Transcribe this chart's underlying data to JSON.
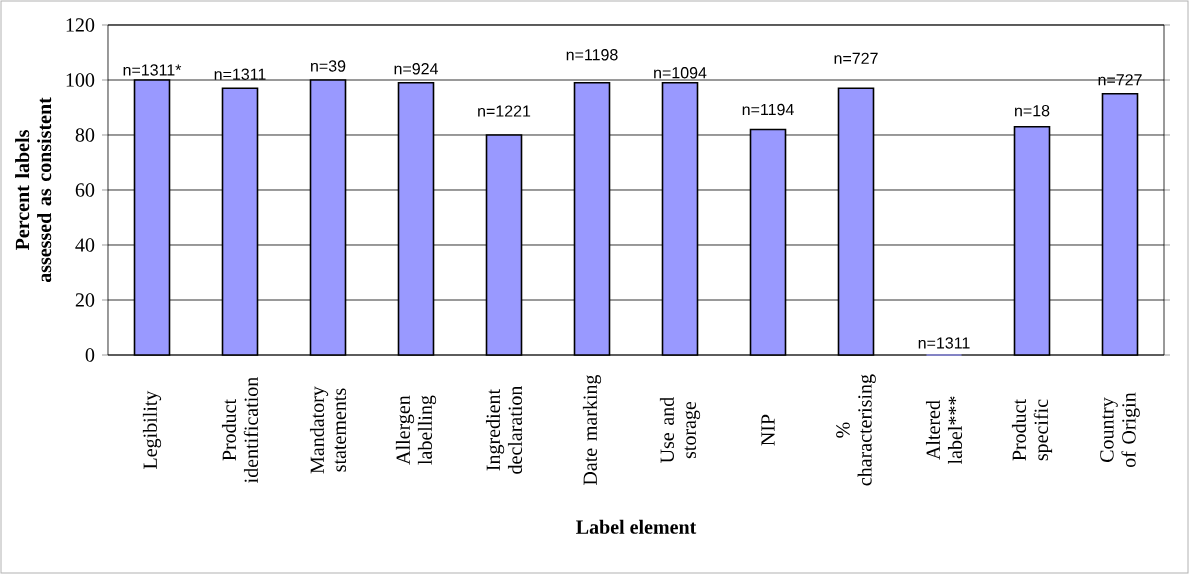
{
  "chart_data": {
    "type": "bar",
    "xlabel": "Label element",
    "ylabel": "Percent labels assessed as consistent",
    "categories": [
      "Legibility",
      "Product identification",
      "Mandatory statements",
      "Allergen labelling",
      "Ingredient declaration",
      "Date marking",
      "Use and storage",
      "NIP",
      "% characterising",
      "Altered label***",
      "Product specific",
      "Country of Origin"
    ],
    "values": [
      100,
      97,
      100,
      99,
      80,
      99,
      99,
      82,
      97,
      0,
      83,
      95
    ],
    "annotations": [
      "n=1311*",
      "n=1311",
      "n=39",
      "n=924",
      "n=1221",
      "n=1198",
      "n=1094",
      "n=1194",
      "n=727",
      "n=1311",
      "n=18",
      "n=727"
    ],
    "color": "#9999ff",
    "ylim": [
      0,
      120
    ],
    "yticks": [
      0,
      20,
      40,
      60,
      80,
      100,
      120
    ],
    "grid": "y"
  }
}
